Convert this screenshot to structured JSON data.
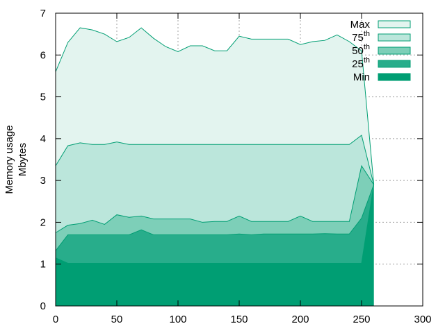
{
  "chart_data": {
    "type": "area",
    "title": "",
    "xlabel": "",
    "ylabel_line1": "Memory usage",
    "ylabel_line2": "Mbytes",
    "xlim": [
      0,
      300
    ],
    "ylim": [
      0,
      7
    ],
    "x_ticks": [
      0,
      50,
      100,
      150,
      200,
      250,
      300
    ],
    "y_ticks": [
      0,
      1,
      2,
      3,
      4,
      5,
      6,
      7
    ],
    "grid": true,
    "legend_position": "top-right",
    "x": [
      0,
      10,
      20,
      30,
      40,
      50,
      60,
      70,
      80,
      90,
      100,
      110,
      120,
      130,
      140,
      150,
      160,
      170,
      180,
      190,
      200,
      210,
      220,
      230,
      240,
      250,
      260
    ],
    "series": [
      {
        "name": "Max",
        "color": "#e3f4ef",
        "values": [
          5.6,
          6.3,
          6.65,
          6.6,
          6.5,
          6.32,
          6.42,
          6.65,
          6.4,
          6.2,
          6.08,
          6.22,
          6.22,
          6.1,
          6.1,
          6.45,
          6.38,
          6.38,
          6.38,
          6.38,
          6.25,
          6.32,
          6.35,
          6.48,
          6.32,
          6.1,
          2.9
        ]
      },
      {
        "name": "75",
        "name_sup": "th",
        "color": "#bbe6db",
        "values": [
          3.35,
          3.83,
          3.9,
          3.86,
          3.86,
          3.92,
          3.86,
          3.86,
          3.86,
          3.86,
          3.86,
          3.86,
          3.86,
          3.86,
          3.86,
          3.86,
          3.86,
          3.86,
          3.86,
          3.86,
          3.86,
          3.86,
          3.86,
          3.86,
          3.86,
          4.08,
          2.9
        ]
      },
      {
        "name": "50",
        "name_sup": "th",
        "color": "#7dcfb8",
        "values": [
          1.75,
          1.93,
          1.97,
          2.05,
          1.95,
          2.18,
          2.12,
          2.15,
          2.08,
          2.08,
          2.08,
          2.08,
          2.0,
          2.02,
          2.02,
          2.15,
          2.02,
          2.02,
          2.02,
          2.02,
          2.15,
          2.02,
          2.02,
          2.02,
          2.02,
          3.35,
          2.9
        ]
      },
      {
        "name": "25",
        "name_sup": "th",
        "color": "#28ad8b",
        "values": [
          1.32,
          1.7,
          1.7,
          1.7,
          1.7,
          1.7,
          1.7,
          1.82,
          1.7,
          1.7,
          1.7,
          1.7,
          1.7,
          1.7,
          1.7,
          1.72,
          1.7,
          1.72,
          1.72,
          1.72,
          1.72,
          1.72,
          1.73,
          1.72,
          1.72,
          2.1,
          2.9
        ]
      },
      {
        "name": "Min",
        "color": "#009e73",
        "values": [
          1.15,
          1.02,
          1.02,
          1.02,
          1.02,
          1.02,
          1.02,
          1.02,
          1.02,
          1.02,
          1.02,
          1.02,
          1.02,
          1.02,
          1.02,
          1.02,
          1.02,
          1.02,
          1.02,
          1.02,
          1.02,
          1.02,
          1.02,
          1.02,
          1.02,
          1.02,
          2.9
        ]
      }
    ]
  }
}
